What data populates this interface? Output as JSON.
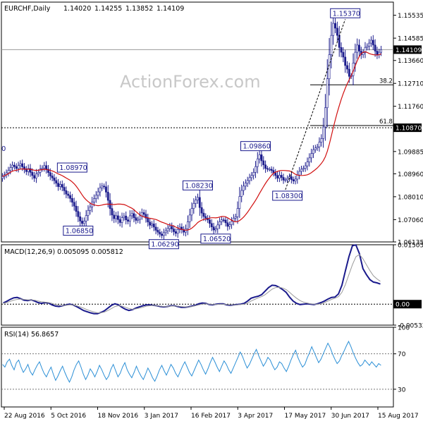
{
  "chart_data": [
    {
      "type": "candlestick",
      "panel": "price",
      "header": {
        "symbol_timeframe": "EURCHF,Daily",
        "ohlc": [
          "1.14020",
          "1.14255",
          "1.13852",
          "1.14109"
        ]
      },
      "watermark": "ActionForex.com",
      "ylim": [
        1.06135,
        1.1608
      ],
      "y_ticks": [
        {
          "value": 1.15535,
          "label": "1.15535"
        },
        {
          "value": 1.14585,
          "label": "1.14585"
        },
        {
          "value": 1.1366,
          "label": "1.13660"
        },
        {
          "value": 1.1271,
          "label": "1.12710"
        },
        {
          "value": 1.1176,
          "label": "1.11760"
        },
        {
          "value": 1.09885,
          "label": "1.09885"
        },
        {
          "value": 1.0896,
          "label": "1.08960"
        },
        {
          "value": 1.0801,
          "label": "1.08010"
        },
        {
          "value": 1.0706,
          "label": "1.07060"
        },
        {
          "value": 1.06135,
          "label": "1.06135"
        }
      ],
      "current_price": {
        "value": 1.14109,
        "label": "1.14109"
      },
      "horizontal_level": {
        "value": 1.1087,
        "label": "1.10870",
        "line": "dotted"
      },
      "fibonacci_levels": [
        {
          "label": "38.2",
          "value": 1.1265
        },
        {
          "label": "61.8",
          "value": 1.1096
        }
      ],
      "annotations": [
        {
          "label": "1.15370",
          "x": 172,
          "y": 1.1537,
          "anchor": "high"
        },
        {
          "label": "1.09860",
          "x": 127,
          "y": 1.0986,
          "anchor": "high"
        },
        {
          "label": "1.08970",
          "x": 35,
          "y": 1.0897,
          "anchor": "high"
        },
        {
          "label": "1.08230",
          "x": 98,
          "y": 1.0823,
          "anchor": "high"
        },
        {
          "label": "1.08300",
          "x": 143,
          "y": 1.083,
          "anchor": "low"
        },
        {
          "label": "1.06850",
          "x": 38,
          "y": 1.0685,
          "anchor": "low"
        },
        {
          "label": "1.06290",
          "x": 81,
          "y": 1.0629,
          "anchor": "low"
        },
        {
          "label": "1.06520",
          "x": 107,
          "y": 1.0652,
          "anchor": "low"
        }
      ],
      "x_count": 190,
      "closes": [
        1.0885,
        1.0892,
        1.09,
        1.091,
        1.0922,
        1.0932,
        1.0926,
        1.0918,
        1.093,
        1.0938,
        1.0925,
        1.0914,
        1.0905,
        1.0918,
        1.0902,
        1.0889,
        1.0878,
        1.0896,
        1.0902,
        1.0916,
        1.092,
        1.093,
        1.0915,
        1.0901,
        1.0887,
        1.0879,
        1.0868,
        1.0857,
        1.0843,
        1.0852,
        1.084,
        1.0826,
        1.0812,
        1.0806,
        1.0794,
        1.0778,
        1.0762,
        1.074,
        1.0718,
        1.07,
        1.069,
        1.07,
        1.0723,
        1.0744,
        1.0758,
        1.0779,
        1.0793,
        1.0807,
        1.0821,
        1.0838,
        1.0845,
        1.0842,
        1.082,
        1.0786,
        1.0752,
        1.0725,
        1.071,
        1.0722,
        1.0706,
        1.0694,
        1.0714,
        1.0721,
        1.0705,
        1.0699,
        1.0722,
        1.0731,
        1.0714,
        1.0703,
        1.0707,
        1.0722,
        1.0735,
        1.0728,
        1.0712,
        1.0696,
        1.0683,
        1.0688,
        1.0675,
        1.0662,
        1.0654,
        1.0646,
        1.064,
        1.0652,
        1.066,
        1.0669,
        1.0678,
        1.0667,
        1.0656,
        1.0649,
        1.0665,
        1.0675,
        1.0664,
        1.0654,
        1.0668,
        1.0697,
        1.0725,
        1.0752,
        1.0773,
        1.0787,
        1.0798,
        1.0756,
        1.0733,
        1.0719,
        1.0712,
        1.0705,
        1.069,
        1.0676,
        1.0663,
        1.0668,
        1.0684,
        1.0697,
        1.0705,
        1.0704,
        1.0693,
        1.0678,
        1.0685,
        1.0699,
        1.0712,
        1.0718,
        1.0752,
        1.0802,
        1.0827,
        1.0845,
        1.0857,
        1.0868,
        1.088,
        1.0889,
        1.0902,
        1.0926,
        1.0958,
        1.0975,
        1.095,
        1.0933,
        1.0918,
        1.0915,
        1.0915,
        1.091,
        1.09,
        1.0889,
        1.0878,
        1.089,
        1.0881,
        1.087,
        1.0871,
        1.0877,
        1.0884,
        1.0872,
        1.0866,
        1.0874,
        1.0891,
        1.0906,
        1.0915,
        1.0919,
        1.0929,
        1.0945,
        1.0962,
        1.098,
        1.0996,
        1.1003,
        1.1008,
        1.1027,
        1.1042,
        1.109,
        1.117,
        1.129,
        1.139,
        1.147,
        1.152,
        1.15,
        1.147,
        1.142,
        1.14,
        1.138,
        1.1345,
        1.133,
        1.13,
        1.1303,
        1.1355,
        1.14,
        1.143,
        1.1405,
        1.139,
        1.1398,
        1.142,
        1.1425,
        1.1438,
        1.145,
        1.143,
        1.1405,
        1.139,
        1.14,
        1.1411
      ],
      "dashed_trendline": {
        "from": [
          142,
          1.083
        ],
        "to": [
          172,
          1.1537
        ]
      },
      "moving_average": {
        "color": "#d10f0f",
        "period": "not shown"
      },
      "x_ticks": [
        {
          "index": 0,
          "label": "22 Aug 2016"
        },
        {
          "index": 31,
          "label": "5 Oct 2016"
        },
        {
          "index": 62,
          "label": "18 Nov 2016"
        },
        {
          "index": 93,
          "label": "3 Jan 2017"
        },
        {
          "index": 124,
          "label": "16 Feb 2017"
        },
        {
          "index": 156,
          "label": "3 Apr 2017"
        },
        {
          "index": 187,
          "label": "17 May 2017"
        },
        {
          "index": 218,
          "label": "30 Jun 2017"
        },
        {
          "index": 249,
          "label": "15 Aug 2017"
        }
      ],
      "x_ticks_count_base": 259
    },
    {
      "type": "line",
      "panel": "macd",
      "header": "MACD(12,26,9) 0.005095 0.005812",
      "ylim": [
        -0.00532,
        0.015052
      ],
      "y_ticks": [
        {
          "value": 0.015052,
          "label": "0.015052"
        },
        {
          "value": 0.0,
          "label": "0.00"
        },
        {
          "value": -0.00532,
          "label": "-0.005321"
        }
      ],
      "current_label": "0.00",
      "zero_line": "dotted",
      "series": [
        {
          "role": "macd",
          "color": "#1a1a8c",
          "values": [
            0.0003,
            0.0007,
            0.0012,
            0.0016,
            0.0017,
            0.0014,
            0.001,
            0.0009,
            0.0011,
            0.0008,
            0.0004,
            0.0002,
            0.0004,
            0.0003,
            -0.0002,
            -0.0005,
            -0.0006,
            -0.0004,
            -0.0002,
            0.0,
            -0.0002,
            -0.0006,
            -0.0011,
            -0.0016,
            -0.0019,
            -0.0022,
            -0.0024,
            -0.0024,
            -0.0021,
            -0.0017,
            -0.001,
            -0.0003,
            0.0001,
            -0.0002,
            -0.0008,
            -0.0013,
            -0.0016,
            -0.0014,
            -0.001,
            -0.0007,
            -0.0004,
            -0.0002,
            -0.0002,
            -0.0003,
            -0.0004,
            -0.0006,
            -0.0007,
            -0.0006,
            -0.0004,
            -0.0004,
            -0.0006,
            -0.0008,
            -0.0008,
            -0.0007,
            -0.0005,
            -0.0003,
            0.0001,
            0.0003,
            0.0002,
            -0.0001,
            -0.0002,
            0.0,
            0.0001,
            0.0001,
            -0.0002,
            -0.0003,
            -0.0002,
            -0.0001,
            0.0,
            0.0002,
            0.0008,
            0.0015,
            0.0018,
            0.002,
            0.0024,
            0.0033,
            0.0042,
            0.0048,
            0.0047,
            0.0043,
            0.0037,
            0.003,
            0.0018,
            0.0008,
            0.0002,
            -0.0001,
            0.0,
            0.0001,
            0.0,
            -0.0001,
            0.0001,
            0.0004,
            0.0008,
            0.0013,
            0.0017,
            0.0018,
            0.0026,
            0.0048,
            0.0085,
            0.012,
            0.0148,
            0.015,
            0.0128,
            0.009,
            0.0075,
            0.0062,
            0.0056,
            0.0054,
            0.0051
          ]
        },
        {
          "role": "signal",
          "color": "#9a9a9a",
          "values": [
            0.0002,
            0.0004,
            0.0007,
            0.001,
            0.0012,
            0.0013,
            0.0012,
            0.0011,
            0.0011,
            0.001,
            0.0008,
            0.0006,
            0.0005,
            0.0004,
            0.0002,
            -0.0001,
            -0.0003,
            -0.0004,
            -0.0003,
            -0.0002,
            -0.0002,
            -0.0004,
            -0.0007,
            -0.001,
            -0.0014,
            -0.0017,
            -0.002,
            -0.0022,
            -0.0022,
            -0.002,
            -0.0016,
            -0.0011,
            -0.0006,
            -0.0004,
            -0.0005,
            -0.0008,
            -0.0011,
            -0.0013,
            -0.0012,
            -0.001,
            -0.0008,
            -0.0005,
            -0.0004,
            -0.0003,
            -0.0004,
            -0.0005,
            -0.0006,
            -0.0006,
            -0.0005,
            -0.0005,
            -0.0005,
            -0.0006,
            -0.0007,
            -0.0007,
            -0.0006,
            -0.0004,
            -0.0002,
            0.0,
            0.0001,
            0.0,
            -0.0001,
            -0.0001,
            0.0,
            0.0,
            -0.0001,
            -0.0002,
            -0.0002,
            -0.0002,
            -0.0001,
            0.0,
            0.0003,
            0.0008,
            0.0012,
            0.0016,
            0.0019,
            0.0024,
            0.0031,
            0.0038,
            0.0042,
            0.0043,
            0.0041,
            0.0037,
            0.003,
            0.0022,
            0.0015,
            0.0009,
            0.0005,
            0.0003,
            0.0001,
            0.0,
            0.0,
            0.0001,
            0.0004,
            0.0008,
            0.0012,
            0.0015,
            0.0019,
            0.003,
            0.005,
            0.0075,
            0.01,
            0.012,
            0.0126,
            0.0115,
            0.01,
            0.0085,
            0.0072,
            0.0064,
            0.0058
          ]
        }
      ]
    },
    {
      "type": "line",
      "panel": "rsi",
      "header": "RSI(14) 56.8657",
      "ylim": [
        10,
        100
      ],
      "y_ticks": [
        {
          "value": 100,
          "label": "100"
        },
        {
          "value": 70,
          "label": "70"
        },
        {
          "value": 30,
          "label": "30"
        }
      ],
      "reference_lines": [
        70,
        30
      ],
      "series": [
        {
          "role": "rsi",
          "color": "#2b8fd6",
          "values": [
            58,
            55,
            61,
            64,
            57,
            52,
            60,
            63,
            55,
            49,
            53,
            58,
            50,
            46,
            52,
            57,
            61,
            54,
            48,
            44,
            50,
            55,
            47,
            40,
            45,
            51,
            56,
            49,
            43,
            38,
            44,
            52,
            58,
            62,
            55,
            47,
            41,
            46,
            53,
            49,
            44,
            50,
            57,
            52,
            46,
            41,
            45,
            53,
            58,
            51,
            44,
            48,
            55,
            60,
            52,
            47,
            43,
            49,
            56,
            50,
            45,
            41,
            47,
            54,
            49,
            43,
            39,
            45,
            52,
            57,
            51,
            46,
            52,
            58,
            54,
            48,
            44,
            50,
            56,
            61,
            55,
            49,
            45,
            51,
            57,
            63,
            58,
            52,
            47,
            53,
            60,
            66,
            61,
            55,
            50,
            56,
            62,
            58,
            52,
            48,
            54,
            60,
            66,
            72,
            67,
            60,
            54,
            58,
            64,
            70,
            75,
            68,
            62,
            56,
            60,
            66,
            63,
            57,
            52,
            55,
            61,
            59,
            54,
            50,
            56,
            63,
            69,
            74,
            66,
            60,
            55,
            58,
            65,
            71,
            78,
            72,
            66,
            60,
            64,
            70,
            76,
            82,
            77,
            70,
            64,
            59,
            62,
            68,
            73,
            79,
            84,
            78,
            71,
            65,
            60,
            56,
            58,
            63,
            60,
            57,
            61,
            58,
            55,
            59,
            57
          ]
        }
      ]
    },
    {
      "x_axis_labels": [
        "22 Aug 2016",
        "5 Oct 2016",
        "18 Nov 2016",
        "3 Jan 2017",
        "16 Feb 2017",
        "3 Apr 2017",
        "17 May 2017",
        "30 Jun 2017",
        "15 Aug 2017"
      ],
      "left_cut_label": "0"
    }
  ],
  "colors": {
    "candle": "#1a1a8c",
    "ma": "#d10f0f",
    "macd": "#1a1a8c",
    "signal": "#9a9a9a",
    "rsi": "#2b8fd6",
    "grid": "#cfcfcf",
    "current_box_bg": "#000000",
    "current_box_fg": "#ffffff"
  }
}
